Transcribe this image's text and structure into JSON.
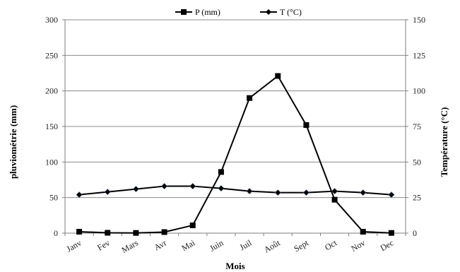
{
  "chart_data": {
    "type": "line",
    "categories": [
      "Janv",
      "Fev",
      "Mars",
      "Avr",
      "Mai",
      "Juin",
      "Juil",
      "Août",
      "Sept",
      "Oct",
      "Nov",
      "Dec"
    ],
    "xlabel": "Mois",
    "ylabel_left": "pluviométrie (mm)",
    "ylabel_right": "Température (°C)",
    "ylim_left": [
      0,
      300
    ],
    "ylim_right": [
      0,
      150
    ],
    "yticks_left": [
      "0",
      "50",
      "100",
      "150",
      "200",
      "250",
      "300"
    ],
    "yticks_right": [
      "0",
      "25",
      "50",
      "75",
      "100",
      "125",
      "150"
    ],
    "grid": true,
    "legend_position": "top",
    "series": [
      {
        "name": "P (mm)",
        "axis": "left",
        "marker": "square",
        "color": "#000000",
        "values": [
          2,
          0.5,
          0.3,
          1.5,
          11,
          86,
          190,
          221,
          152,
          47,
          2,
          0.3
        ]
      },
      {
        "name": "T (°C)",
        "axis": "right",
        "marker": "diamond",
        "color": "#000000",
        "values": [
          27,
          29,
          31,
          33,
          33,
          31.5,
          29.5,
          28.5,
          28.5,
          29.5,
          28.5,
          27
        ]
      }
    ]
  }
}
